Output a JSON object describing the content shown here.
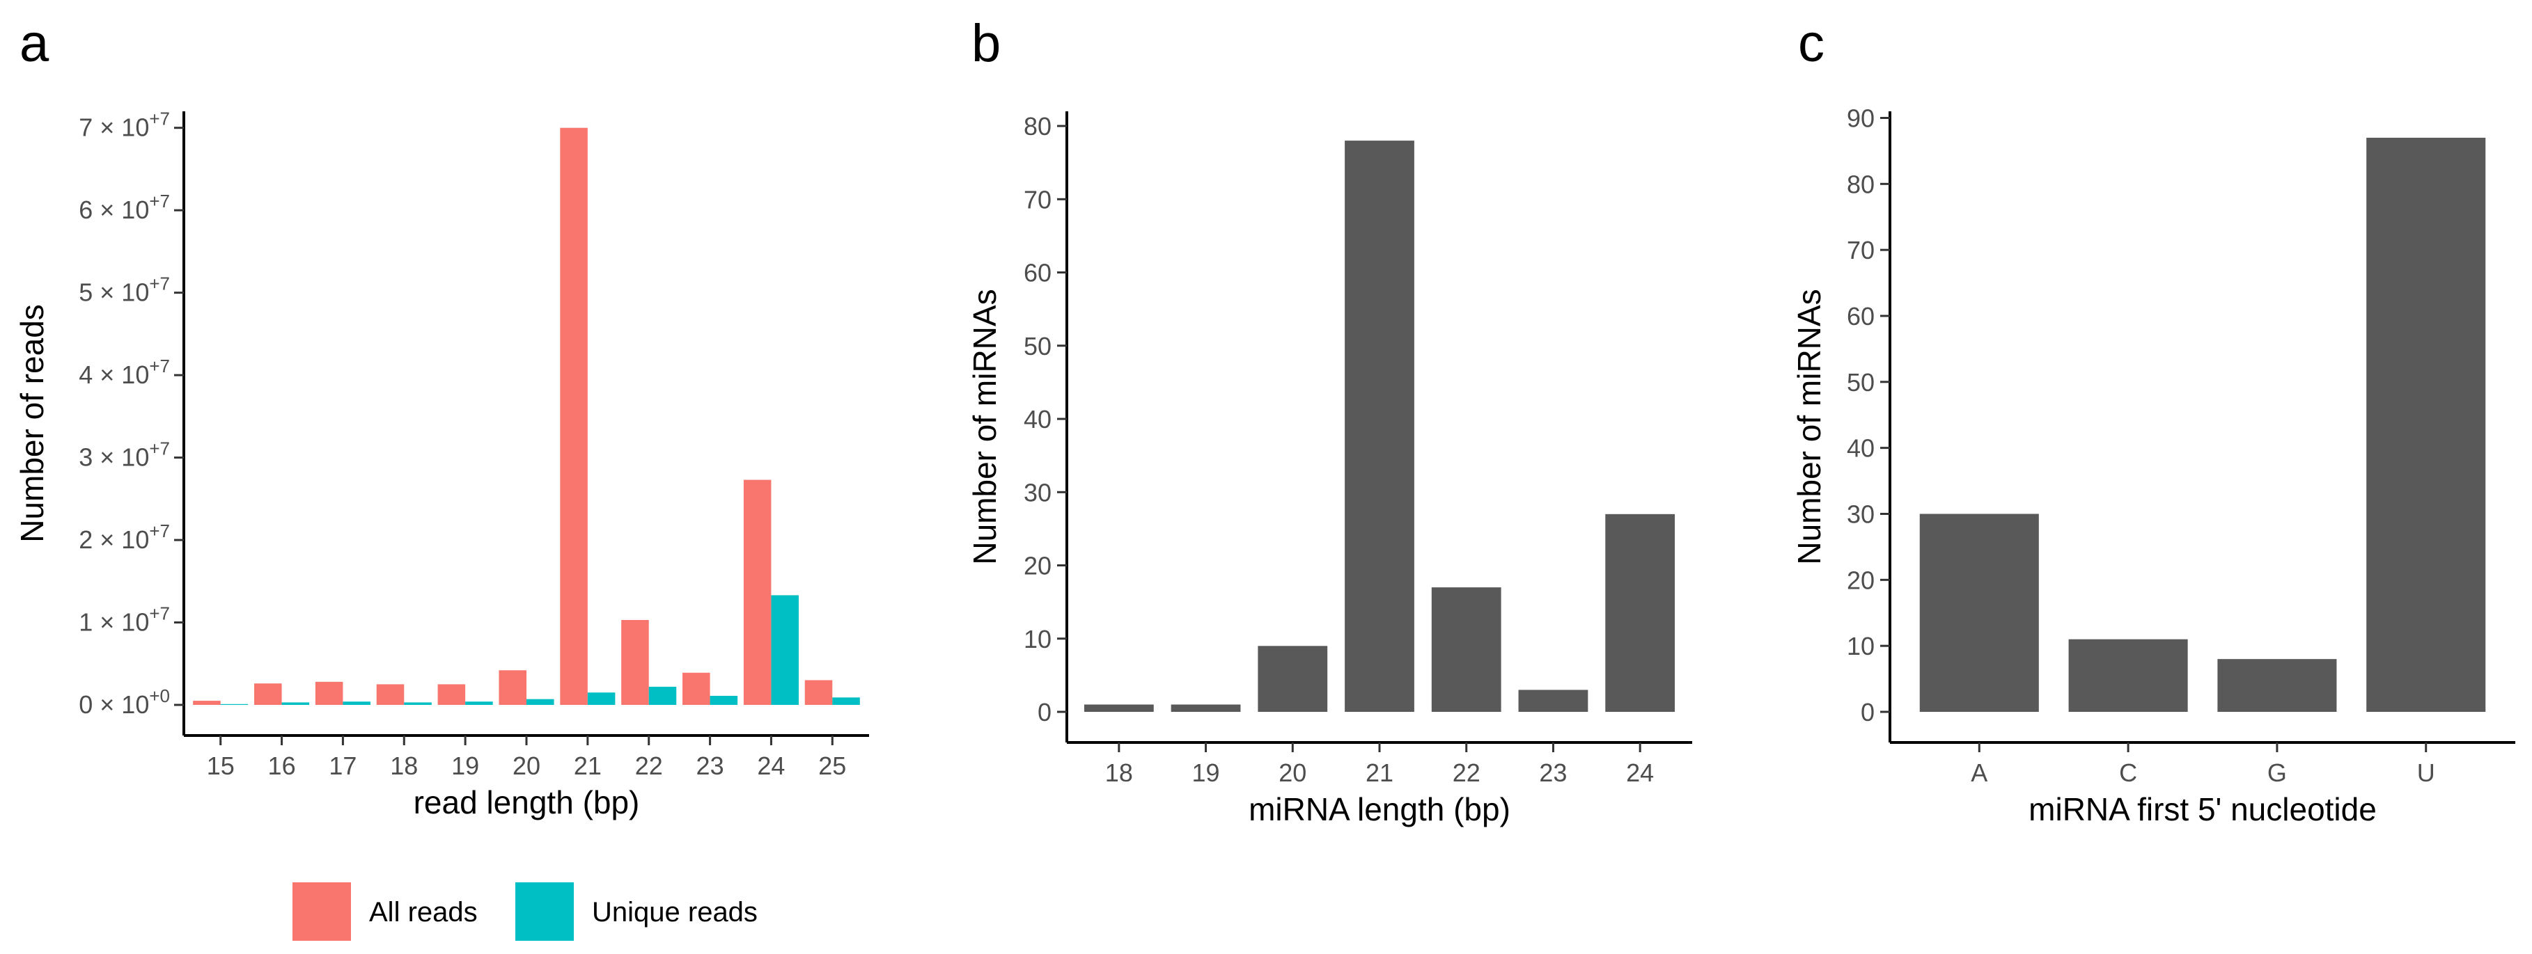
{
  "panels": [
    {
      "label": "a"
    },
    {
      "label": "b"
    },
    {
      "label": "c"
    }
  ],
  "colors": {
    "all_reads": "#F8766D",
    "unique_reads": "#00BFC4",
    "bars": "#595959",
    "axis": "#000000",
    "tick_text": "#4d4d4d"
  },
  "chart_data": [
    {
      "type": "bar",
      "panel": "a",
      "title": "",
      "xlabel": "read length (bp)",
      "ylabel": "Number of reads",
      "categories": [
        "15",
        "16",
        "17",
        "18",
        "19",
        "20",
        "21",
        "22",
        "23",
        "24",
        "25"
      ],
      "series": [
        {
          "name": "All reads",
          "values": [
            500000,
            2600000,
            2800000,
            2500000,
            2500000,
            4200000,
            70000000,
            10300000,
            3900000,
            27300000,
            3000000
          ]
        },
        {
          "name": "Unique reads",
          "values": [
            100000,
            300000,
            400000,
            300000,
            400000,
            700000,
            1500000,
            2200000,
            1100000,
            13300000,
            900000
          ]
        }
      ],
      "ylim": [
        0,
        72000000
      ],
      "y_tick_labels": [
        {
          "value": 0,
          "base": "0 × 10",
          "exp": "+0"
        },
        {
          "value": 10000000,
          "base": "1 × 10",
          "exp": "+7"
        },
        {
          "value": 20000000,
          "base": "2 × 10",
          "exp": "+7"
        },
        {
          "value": 30000000,
          "base": "3 × 10",
          "exp": "+7"
        },
        {
          "value": 40000000,
          "base": "4 × 10",
          "exp": "+7"
        },
        {
          "value": 50000000,
          "base": "5 × 10",
          "exp": "+7"
        },
        {
          "value": 60000000,
          "base": "6 × 10",
          "exp": "+7"
        },
        {
          "value": 70000000,
          "base": "7 × 10",
          "exp": "+7"
        }
      ],
      "legend": {
        "position": "bottom",
        "entries": [
          "All reads",
          "Unique reads"
        ]
      },
      "grid": false
    },
    {
      "type": "bar",
      "panel": "b",
      "title": "",
      "xlabel": "miRNA length (bp)",
      "ylabel": "Number of miRNAs",
      "categories": [
        "18",
        "19",
        "20",
        "21",
        "22",
        "23",
        "24"
      ],
      "values": [
        1,
        1,
        9,
        78,
        17,
        3,
        27
      ],
      "ylim": [
        0,
        82
      ],
      "y_ticks": [
        0,
        10,
        20,
        30,
        40,
        50,
        60,
        70,
        80
      ],
      "grid": false
    },
    {
      "type": "bar",
      "panel": "c",
      "title": "",
      "xlabel": "miRNA first 5' nucleotide",
      "ylabel": "Number of miRNAs",
      "categories": [
        "A",
        "C",
        "G",
        "U"
      ],
      "values": [
        30,
        11,
        8,
        87
      ],
      "ylim": [
        0,
        91
      ],
      "y_ticks": [
        0,
        10,
        20,
        30,
        40,
        50,
        60,
        70,
        80,
        90
      ],
      "grid": false
    }
  ]
}
